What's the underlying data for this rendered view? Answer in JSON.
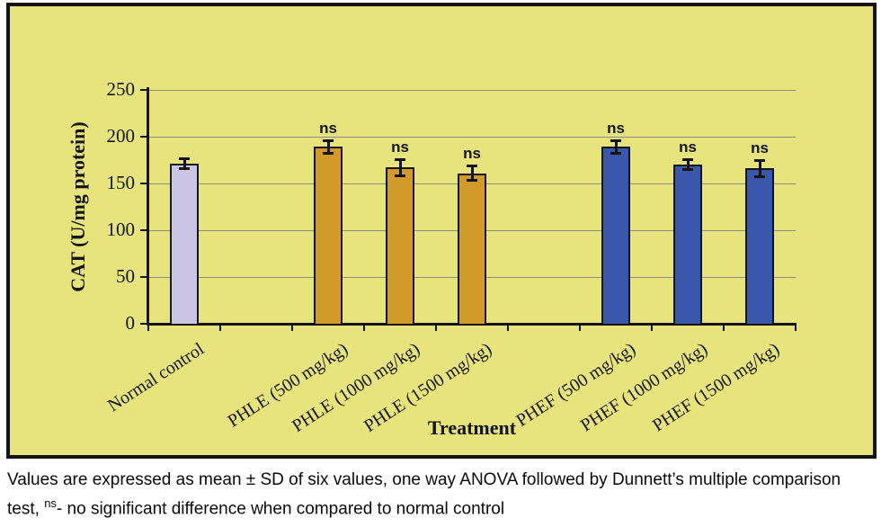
{
  "colors": {
    "chart_bg": "#E8E47D",
    "frame": "#141414",
    "gridline": "#8B8B7E",
    "axis": "#141414",
    "text": "#141414",
    "bar_control": "#CBC5E5",
    "bar_phle": "#D29A28",
    "bar_phef": "#3A57AC"
  },
  "chart_data": {
    "type": "bar",
    "title": "",
    "xlabel": "Treatment",
    "ylabel": "CAT (U/mg protein)",
    "ylim": [
      0,
      250
    ],
    "ytick_interval": 50,
    "yticks": [
      0,
      50,
      100,
      150,
      200,
      250
    ],
    "grid": true,
    "legend": "none",
    "categories": [
      "Normal control",
      "PHLE (500 mg/kg)",
      "PHLE (1000 mg/kg)",
      "PHLE (1500 mg/kg)",
      "PHEF (500 mg/kg)",
      "PHEF (1000 mg/kg)",
      "PHEF (1500 mg/kg)"
    ],
    "series": [
      {
        "name": "CAT (U/mg protein)",
        "values": [
          171,
          189,
          167,
          161,
          189,
          170,
          166
        ]
      }
    ],
    "errors": [
      6,
      7,
      9,
      8,
      7,
      6,
      9
    ],
    "significance": [
      "",
      "ns",
      "ns",
      "ns",
      "ns",
      "ns",
      "ns"
    ],
    "bar_color_keys": [
      "bar_control",
      "bar_phle",
      "bar_phle",
      "bar_phle",
      "bar_phef",
      "bar_phef",
      "bar_phef"
    ],
    "slots": [
      0,
      2,
      3,
      4,
      6,
      7,
      8
    ],
    "total_slots": 9
  },
  "caption": {
    "line1": "Values are expressed as mean ± SD of six values, one way ANOVA followed by Dunnett’s multiple comparison",
    "line2_prefix": "test, ",
    "line2_sup": "ns",
    "line2_suffix": "- no significant difference  when compared to normal control"
  }
}
